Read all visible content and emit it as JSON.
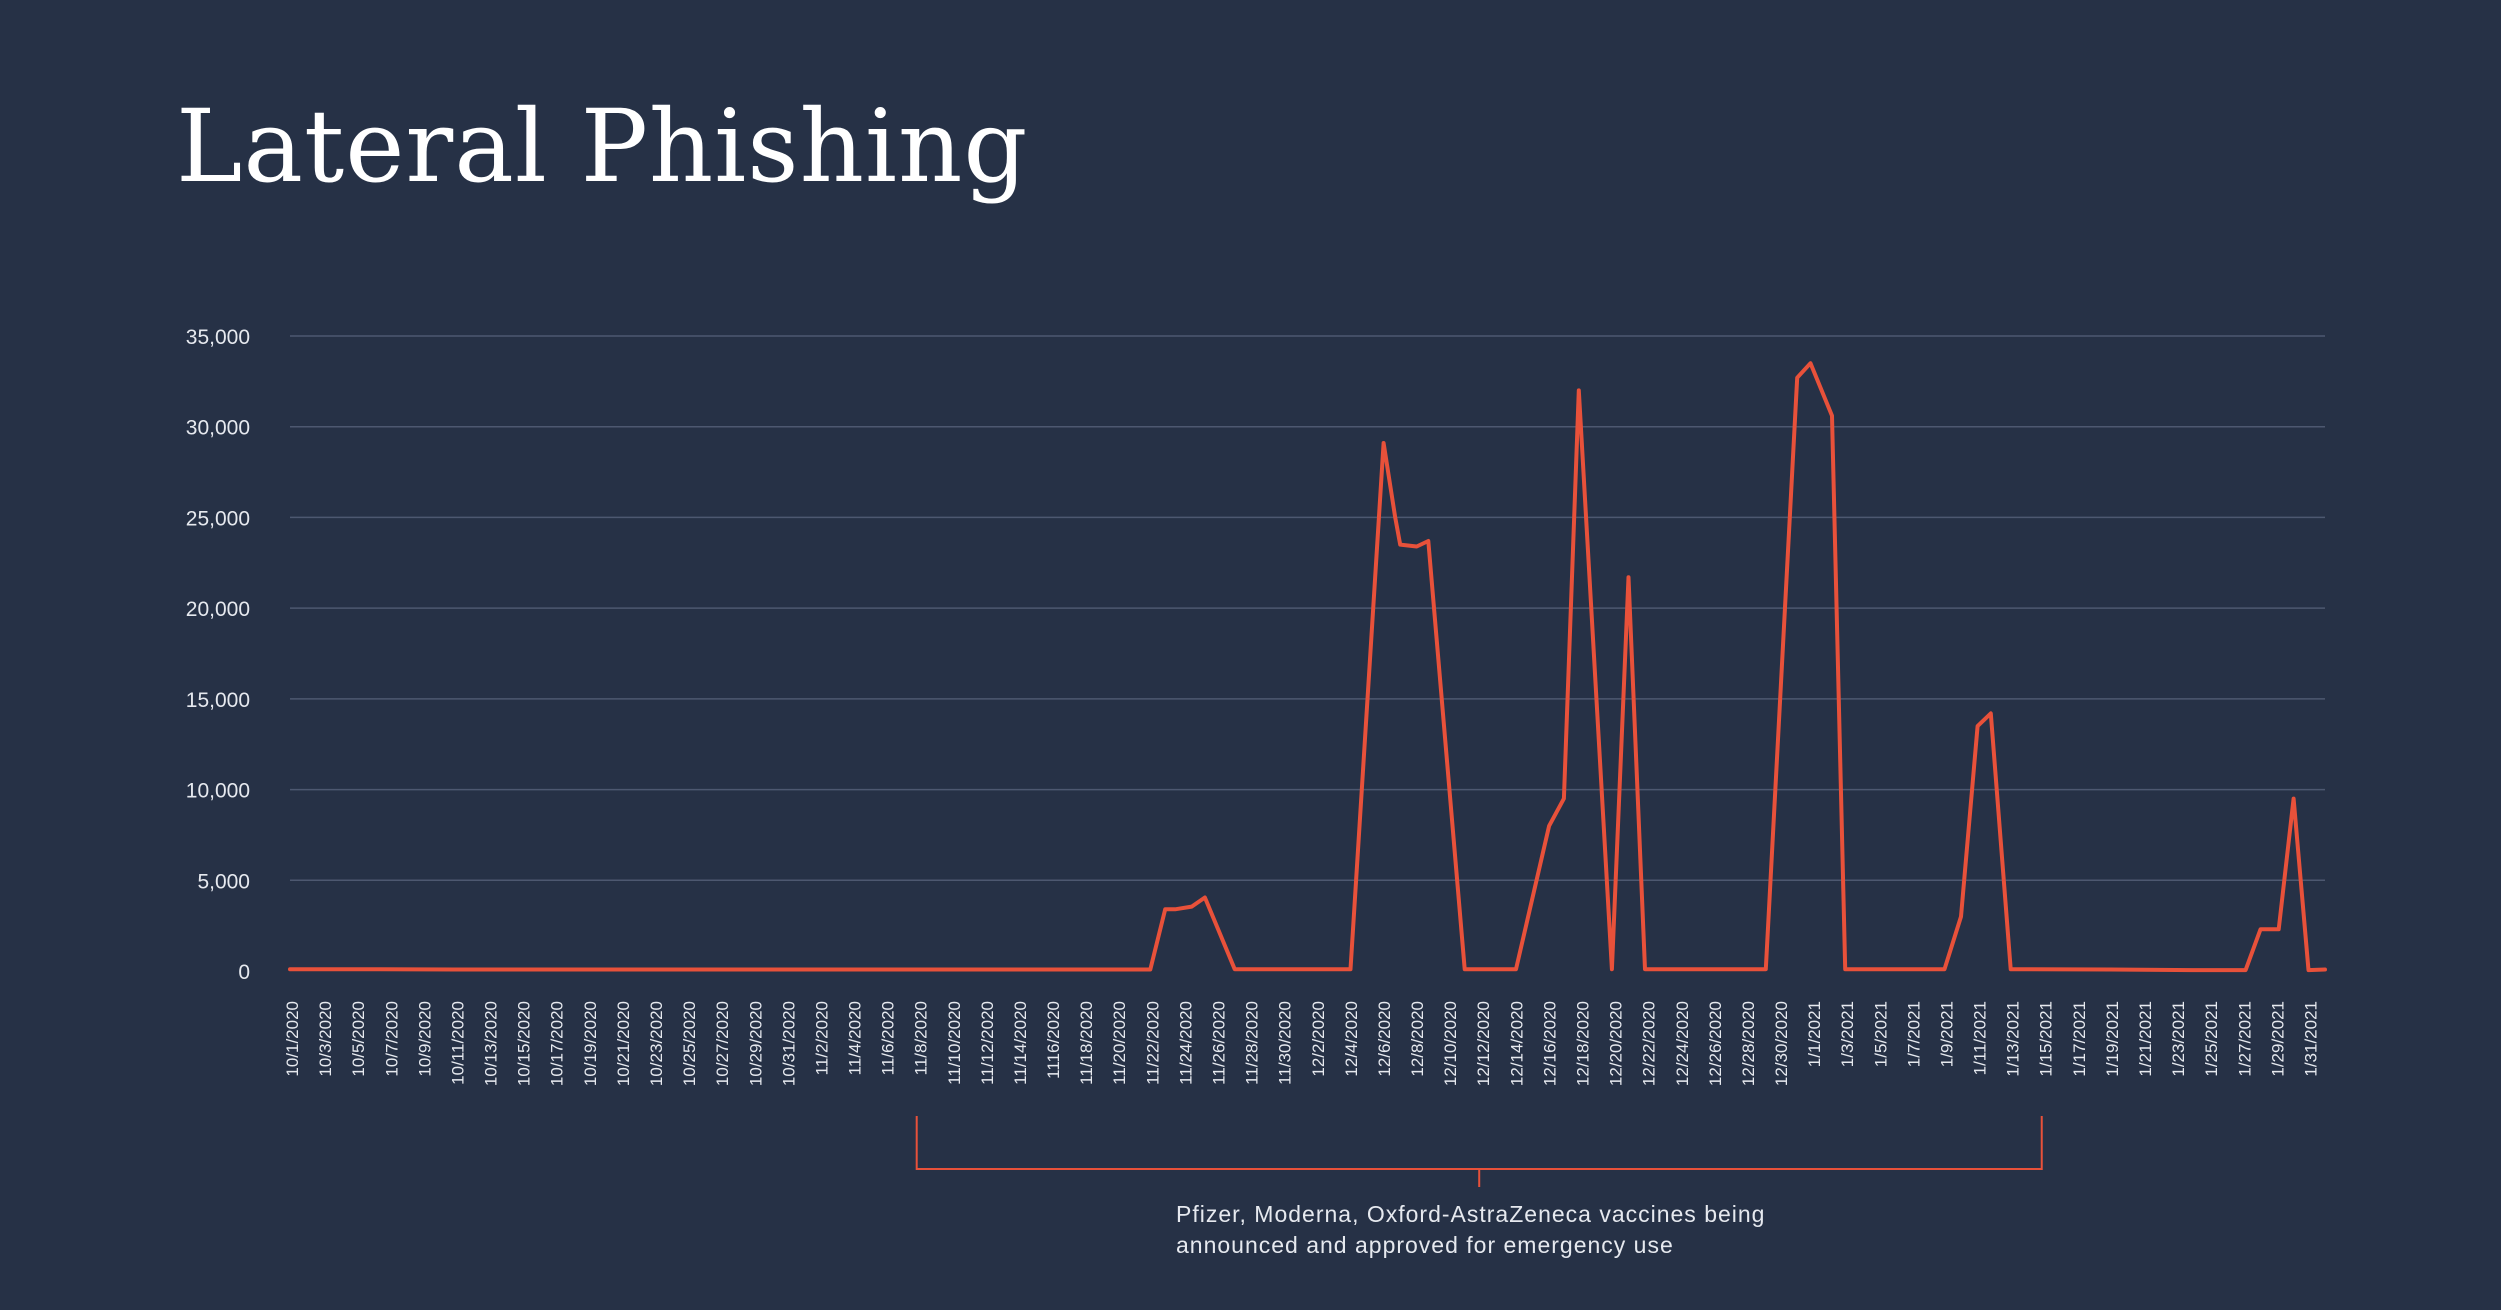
{
  "chart_data": {
    "type": "line",
    "title": "Lateral Phishing",
    "xlabel": "",
    "ylabel": "",
    "ylim": [
      0,
      35000
    ],
    "yticks": [
      0,
      5000,
      10000,
      15000,
      20000,
      25000,
      30000,
      35000
    ],
    "ytick_labels": [
      "0",
      "5,000",
      "10,000",
      "15,000",
      "20,000",
      "25,000",
      "30,000",
      "35,000"
    ],
    "grid": true,
    "x_tick_labels": [
      "10/1/2020",
      "10/3/2020",
      "10/5/2020",
      "10/7/2020",
      "10/9/2020",
      "10/11/2020",
      "10/13/2020",
      "10/15/2020",
      "10/17/2020",
      "10/19/2020",
      "10/21/2020",
      "10/23/2020",
      "10/25/2020",
      "10/27/2020",
      "10/29/2020",
      "10/31/2020",
      "11/2/2020",
      "11/4/2020",
      "11/6/2020",
      "11/8/2020",
      "11/10/2020",
      "11/12/2020",
      "11/14/2020",
      "1116/2020",
      "11/18/2020",
      "11/20/2020",
      "11/22/2020",
      "11/24/2020",
      "11/26/2020",
      "11/28/2020",
      "11/30/2020",
      "12/2/2020",
      "12/4/2020",
      "12/6/2020",
      "12/8/2020",
      "12/10/2020",
      "12/12/2020",
      "12/14/2020",
      "12/16/2020",
      "12/18/2020",
      "12/20/2020",
      "12/22/2020",
      "12/24/2020",
      "12/26/2020",
      "12/28/2020",
      "12/30/2020",
      "1/1/2021",
      "1/3/2021",
      "1/5/2021",
      "1/7/2021",
      "1/9/2021",
      "1/11/2021",
      "1/13/2021",
      "1/15/2021",
      "1/17/2021",
      "1/19/2021",
      "1/21/2021",
      "1/23/2021",
      "1/25/2021",
      "1/27/2021",
      "1/29/2021",
      "1/31/2021"
    ],
    "series": [
      {
        "name": "Lateral Phishing",
        "color": "#e8513a",
        "points": [
          [
            0,
            100
          ],
          [
            5,
            100
          ],
          [
            10,
            80
          ],
          [
            20,
            80
          ],
          [
            30,
            80
          ],
          [
            40,
            80
          ],
          [
            52,
            80
          ],
          [
            52.9,
            3400
          ],
          [
            53.5,
            3400
          ],
          [
            54.5,
            3550
          ],
          [
            55.3,
            4050
          ],
          [
            57.1,
            100
          ],
          [
            60,
            100
          ],
          [
            64.1,
            100
          ],
          [
            66.1,
            29100
          ],
          [
            66.8,
            25000
          ],
          [
            67.1,
            23500
          ],
          [
            68.1,
            23400
          ],
          [
            68.8,
            23700
          ],
          [
            71.0,
            100
          ],
          [
            74.1,
            100
          ],
          [
            76.1,
            8000
          ],
          [
            77.0,
            9500
          ],
          [
            77.9,
            32000
          ],
          [
            79.9,
            100
          ],
          [
            80.9,
            21700
          ],
          [
            81.9,
            100
          ],
          [
            89.2,
            100
          ],
          [
            91.1,
            32700
          ],
          [
            91.9,
            33500
          ],
          [
            93.2,
            30600
          ],
          [
            94.0,
            100
          ],
          [
            100,
            100
          ],
          [
            101,
            3000
          ],
          [
            102,
            13500
          ],
          [
            102.8,
            14200
          ],
          [
            104,
            100
          ],
          [
            110,
            80
          ],
          [
            115,
            50
          ],
          [
            118.2,
            50
          ],
          [
            119.1,
            2300
          ],
          [
            120.2,
            2300
          ],
          [
            121.1,
            9500
          ],
          [
            122,
            50
          ],
          [
            123,
            80
          ]
        ]
      }
    ],
    "annotations": [
      {
        "text_line1": "Pfizer, Moderna, Oxford-AstraZeneca vaccines being",
        "text_line2": "announced and approved for emergency use",
        "x_start": 38,
        "x_end": 106
      }
    ]
  }
}
